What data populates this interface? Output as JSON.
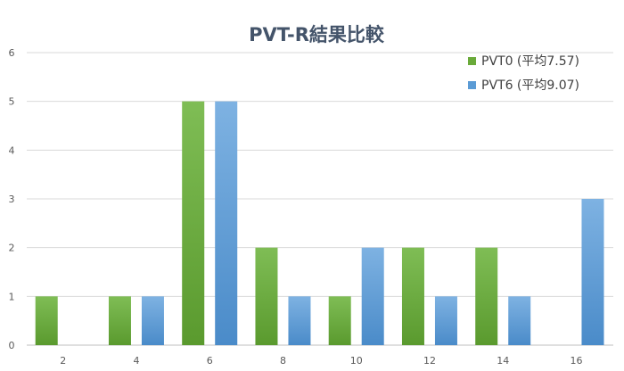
{
  "chart_data": {
    "type": "bar",
    "title": "PVT-R結果比較",
    "xlabel": "",
    "ylabel": "",
    "categories": [
      "2",
      "4",
      "6",
      "8",
      "10",
      "12",
      "14",
      "16"
    ],
    "series": [
      {
        "name": "PVT0 (平均7.57)",
        "values": [
          1,
          1,
          5,
          2,
          1,
          2,
          2,
          0
        ],
        "color": "#6aaa3a"
      },
      {
        "name": "PVT6 (平均9.07)",
        "values": [
          0,
          1,
          5,
          1,
          2,
          1,
          1,
          3
        ],
        "color": "#5b9bd5"
      }
    ],
    "ylim": [
      0,
      6
    ],
    "yticks": [
      0,
      1,
      2,
      3,
      4,
      5,
      6
    ],
    "grid": true,
    "legend_position": "top-right"
  }
}
